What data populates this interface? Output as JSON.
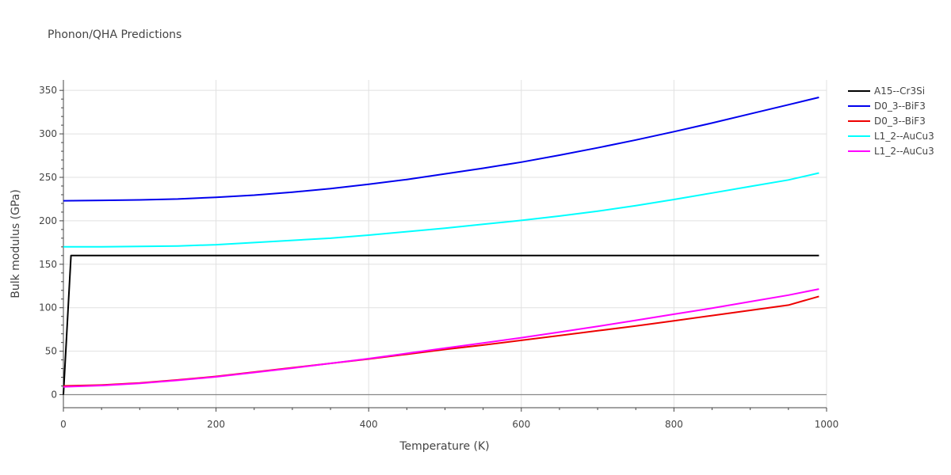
{
  "chart_data": {
    "type": "line",
    "title": "Phonon/QHA Predictions",
    "xlabel": "Temperature (K)",
    "ylabel": "Bulk modulus (GPa)",
    "xlim": [
      0,
      1000
    ],
    "ylim": [
      -15,
      362
    ],
    "xticks": [
      0,
      200,
      400,
      600,
      800,
      1000
    ],
    "yticks": [
      0,
      50,
      100,
      150,
      200,
      250,
      300,
      350
    ],
    "grid": true,
    "legend_position": "top-right",
    "series": [
      {
        "name": "A15--Cr3Si",
        "color": "#000000",
        "x": [
          0,
          10,
          100,
          200,
          300,
          400,
          500,
          600,
          700,
          800,
          900,
          990
        ],
        "y": [
          0,
          160,
          160,
          160,
          160,
          160,
          160,
          160,
          160,
          160,
          160,
          160
        ]
      },
      {
        "name": "D0_3--BiF3",
        "color": "#0000ee",
        "x": [
          0,
          50,
          100,
          150,
          200,
          250,
          300,
          350,
          400,
          450,
          500,
          550,
          600,
          650,
          700,
          750,
          800,
          850,
          900,
          950,
          990
        ],
        "y": [
          223,
          223.5,
          224,
          225,
          227,
          229.5,
          233,
          237,
          242,
          247.5,
          254,
          260.5,
          267.5,
          275.5,
          284,
          293,
          302.5,
          312.5,
          323,
          333.5,
          342
        ]
      },
      {
        "name": "D0_3--BiF3",
        "color": "#ee0000",
        "x": [
          0,
          50,
          100,
          150,
          200,
          250,
          300,
          350,
          400,
          450,
          500,
          550,
          600,
          650,
          700,
          750,
          800,
          850,
          900,
          950,
          990
        ],
        "y": [
          10,
          11,
          13.5,
          17,
          21,
          26,
          31,
          36,
          41,
          46.5,
          52,
          57,
          62.5,
          68,
          73.5,
          79,
          85,
          91,
          97,
          103,
          113
        ]
      },
      {
        "name": "L1_2--AuCu3",
        "color": "#00ffff",
        "x": [
          0,
          50,
          100,
          150,
          200,
          250,
          300,
          350,
          400,
          450,
          500,
          550,
          600,
          650,
          700,
          750,
          800,
          850,
          900,
          950,
          990
        ],
        "y": [
          170,
          170,
          170.5,
          171,
          172.5,
          175,
          177.5,
          180,
          183.5,
          187.5,
          191.5,
          196,
          200.5,
          205.5,
          211,
          217.5,
          224.5,
          232,
          239.5,
          247,
          255
        ]
      },
      {
        "name": "L1_2--AuCu3",
        "color": "#ff00ff",
        "x": [
          0,
          50,
          100,
          150,
          200,
          250,
          300,
          350,
          400,
          450,
          500,
          550,
          600,
          650,
          700,
          750,
          800,
          850,
          900,
          950,
          990
        ],
        "y": [
          9,
          10.5,
          13,
          16.5,
          20.5,
          25.5,
          30.5,
          36,
          41.5,
          47.5,
          53.5,
          59.5,
          65.5,
          72,
          78.5,
          85.5,
          92.5,
          99.5,
          107,
          114.5,
          121.5
        ]
      }
    ]
  }
}
